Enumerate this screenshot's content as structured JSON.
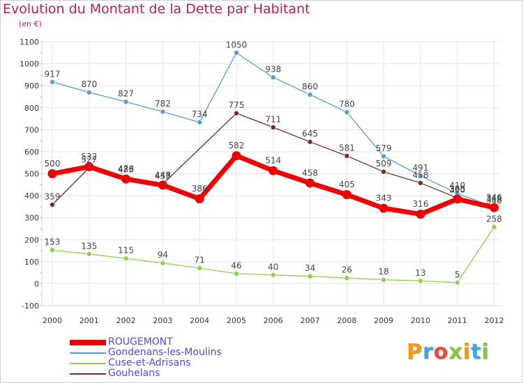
{
  "header": {
    "title": "Evolution du Montant de la Dette par Habitant",
    "unit": "(en €)"
  },
  "logo": {
    "text": "Proxiti",
    "letters": [
      {
        "ch": "P",
        "color": "#f39c12"
      },
      {
        "ch": "r",
        "color": "#3fa6e0"
      },
      {
        "ch": "o",
        "color": "#e74c3c"
      },
      {
        "ch": "x",
        "color": "#8dc63f"
      },
      {
        "ch": "i",
        "color": "#f39c12"
      },
      {
        "ch": "t",
        "color": "#3fa6e0"
      },
      {
        "ch": "i",
        "color": "#8dc63f"
      }
    ]
  },
  "chart_data": {
    "type": "line",
    "title": "Evolution du Montant de la Dette par Habitant",
    "ylabel": "(en €)",
    "xlabel": "",
    "x": [
      "2000",
      "2001",
      "2002",
      "2003",
      "2004",
      "2005",
      "2006",
      "2007",
      "2008",
      "2009",
      "2010",
      "2011",
      "2012"
    ],
    "ylim": [
      -100,
      1100
    ],
    "yticks": [
      -100,
      0,
      100,
      200,
      300,
      400,
      500,
      600,
      700,
      800,
      900,
      1000,
      1100
    ],
    "grid": true,
    "legend_position": "bottom-left",
    "series": [
      {
        "name": "Gondenans-les-Moulins",
        "color": "#5b9bd5",
        "values": [
          917,
          870,
          827,
          782,
          734,
          1050,
          938,
          860,
          780,
          579,
          491,
          410,
          349
        ]
      },
      {
        "name": "Cuse-et-Adrisans",
        "color": "#8fd14f",
        "values": [
          153,
          135,
          115,
          94,
          71,
          46,
          40,
          34,
          26,
          18,
          13,
          5,
          258
        ]
      },
      {
        "name": "Gouhelans",
        "color": "#7b2a2a",
        "values": [
          359,
          527,
          483,
          453,
          null,
          775,
          711,
          645,
          581,
          509,
          458,
          390,
          340
        ]
      },
      {
        "name": "ROUGEMONT",
        "color": "#ee0000",
        "values": [
          500,
          532,
          476,
          448,
          386,
          582,
          514,
          458,
          405,
          343,
          316,
          385,
          346
        ]
      }
    ]
  }
}
